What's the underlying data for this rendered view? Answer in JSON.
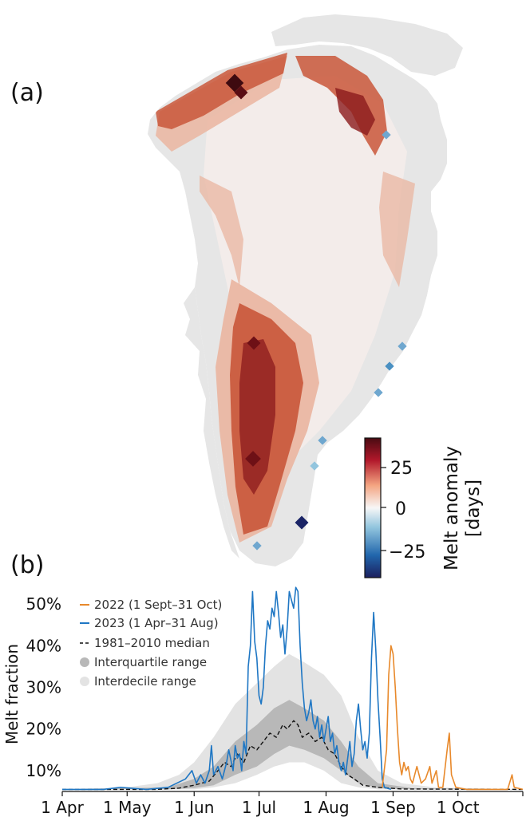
{
  "panel_a": {
    "label": "(a)",
    "colorbar": {
      "title_line1": "Melt anomaly",
      "title_line2": "[days]",
      "ticks": [
        "25",
        "0",
        "−25"
      ],
      "tick_values": [
        25,
        0,
        -25
      ],
      "range": [
        -40,
        40
      ],
      "colors": [
        "#1b1f5e",
        "#2166ac",
        "#92c5de",
        "#f7f7f7",
        "#f4a582",
        "#b2182b",
        "#4a0b12"
      ]
    },
    "map_colors": {
      "land": "#e6e6e6",
      "near_zero": "#f3ecea",
      "light_positive": "#eab5a0",
      "positive": "#c9573a",
      "strong_positive": "#8b1a1c",
      "extreme_positive": "#3e0a10",
      "negative": "#6fa7cf",
      "strong_negative": "#1b2466"
    }
  },
  "panel_b": {
    "label": "(b)"
  },
  "chart_data": {
    "type": "line",
    "title": "",
    "xlabel": "",
    "ylabel": "Melt fraction",
    "xlim": [
      "2023-04-01",
      "2023-10-31"
    ],
    "ylim": [
      0.05,
      0.55
    ],
    "x_tick_labels": [
      "1 Apr",
      "1 May",
      "1 Jun",
      "1 Jul",
      "1 Aug",
      "1 Sep",
      "1 Oct"
    ],
    "x_tick_dates": [
      "2023-04-01",
      "2023-05-01",
      "2023-06-01",
      "2023-07-01",
      "2023-08-01",
      "2023-09-01",
      "2023-10-01"
    ],
    "y_tick_labels": [
      "10%",
      "20%",
      "30%",
      "40%",
      "50%"
    ],
    "y_tick_values": [
      0.1,
      0.2,
      0.3,
      0.4,
      0.5
    ],
    "legend_position": "top-left",
    "series": [
      {
        "name": "2022 (1 Sept–31 Oct)",
        "color": "#e8892b",
        "style": "solid",
        "points": [
          [
            "2023-08-27",
            0.06
          ],
          [
            "2023-08-29",
            0.15
          ],
          [
            "2023-08-30",
            0.33
          ],
          [
            "2023-08-31",
            0.4
          ],
          [
            "2023-09-01",
            0.38
          ],
          [
            "2023-09-02",
            0.3
          ],
          [
            "2023-09-03",
            0.2
          ],
          [
            "2023-09-04",
            0.12
          ],
          [
            "2023-09-05",
            0.09
          ],
          [
            "2023-09-06",
            0.12
          ],
          [
            "2023-09-07",
            0.1
          ],
          [
            "2023-09-08",
            0.11
          ],
          [
            "2023-09-09",
            0.08
          ],
          [
            "2023-09-10",
            0.07
          ],
          [
            "2023-09-12",
            0.11
          ],
          [
            "2023-09-13",
            0.09
          ],
          [
            "2023-09-14",
            0.07
          ],
          [
            "2023-09-16",
            0.08
          ],
          [
            "2023-09-18",
            0.11
          ],
          [
            "2023-09-19",
            0.07
          ],
          [
            "2023-09-21",
            0.1
          ],
          [
            "2023-09-22",
            0.06
          ],
          [
            "2023-09-24",
            0.06
          ],
          [
            "2023-09-26",
            0.15
          ],
          [
            "2023-09-27",
            0.19
          ],
          [
            "2023-09-28",
            0.09
          ],
          [
            "2023-09-30",
            0.06
          ],
          [
            "2023-10-05",
            0.055
          ],
          [
            "2023-10-15",
            0.055
          ],
          [
            "2023-10-24",
            0.055
          ],
          [
            "2023-10-26",
            0.09
          ],
          [
            "2023-10-27",
            0.06
          ],
          [
            "2023-10-31",
            0.055
          ]
        ]
      },
      {
        "name": "2023 (1 Apr–31 Aug)",
        "color": "#1f77c4",
        "style": "solid",
        "points": [
          [
            "2023-04-01",
            0.055
          ],
          [
            "2023-04-20",
            0.055
          ],
          [
            "2023-04-28",
            0.06
          ],
          [
            "2023-05-10",
            0.055
          ],
          [
            "2023-05-20",
            0.06
          ],
          [
            "2023-05-28",
            0.08
          ],
          [
            "2023-05-31",
            0.1
          ],
          [
            "2023-06-02",
            0.07
          ],
          [
            "2023-06-04",
            0.09
          ],
          [
            "2023-06-06",
            0.07
          ],
          [
            "2023-06-08",
            0.1
          ],
          [
            "2023-06-09",
            0.16
          ],
          [
            "2023-06-10",
            0.09
          ],
          [
            "2023-06-12",
            0.11
          ],
          [
            "2023-06-14",
            0.08
          ],
          [
            "2023-06-16",
            0.12
          ],
          [
            "2023-06-17",
            0.15
          ],
          [
            "2023-06-19",
            0.1
          ],
          [
            "2023-06-20",
            0.16
          ],
          [
            "2023-06-21",
            0.13
          ],
          [
            "2023-06-22",
            0.14
          ],
          [
            "2023-06-23",
            0.1
          ],
          [
            "2023-06-24",
            0.17
          ],
          [
            "2023-06-25",
            0.14
          ],
          [
            "2023-06-26",
            0.35
          ],
          [
            "2023-06-27",
            0.4
          ],
          [
            "2023-06-28",
            0.53
          ],
          [
            "2023-06-29",
            0.41
          ],
          [
            "2023-06-30",
            0.37
          ],
          [
            "2023-07-01",
            0.28
          ],
          [
            "2023-07-02",
            0.26
          ],
          [
            "2023-07-03",
            0.3
          ],
          [
            "2023-07-04",
            0.4
          ],
          [
            "2023-07-05",
            0.46
          ],
          [
            "2023-07-06",
            0.44
          ],
          [
            "2023-07-07",
            0.49
          ],
          [
            "2023-07-08",
            0.47
          ],
          [
            "2023-07-09",
            0.53
          ],
          [
            "2023-07-10",
            0.48
          ],
          [
            "2023-07-11",
            0.42
          ],
          [
            "2023-07-12",
            0.45
          ],
          [
            "2023-07-13",
            0.38
          ],
          [
            "2023-07-14",
            0.44
          ],
          [
            "2023-07-15",
            0.53
          ],
          [
            "2023-07-16",
            0.51
          ],
          [
            "2023-07-17",
            0.49
          ],
          [
            "2023-07-18",
            0.54
          ],
          [
            "2023-07-19",
            0.53
          ],
          [
            "2023-07-20",
            0.4
          ],
          [
            "2023-07-21",
            0.31
          ],
          [
            "2023-07-22",
            0.25
          ],
          [
            "2023-07-23",
            0.22
          ],
          [
            "2023-07-24",
            0.24
          ],
          [
            "2023-07-25",
            0.27
          ],
          [
            "2023-07-26",
            0.22
          ],
          [
            "2023-07-27",
            0.2
          ],
          [
            "2023-07-28",
            0.23
          ],
          [
            "2023-07-29",
            0.18
          ],
          [
            "2023-07-30",
            0.21
          ],
          [
            "2023-07-31",
            0.17
          ],
          [
            "2023-08-01",
            0.2
          ],
          [
            "2023-08-02",
            0.23
          ],
          [
            "2023-08-03",
            0.17
          ],
          [
            "2023-08-04",
            0.19
          ],
          [
            "2023-08-05",
            0.14
          ],
          [
            "2023-08-06",
            0.16
          ],
          [
            "2023-08-07",
            0.12
          ],
          [
            "2023-08-08",
            0.1
          ],
          [
            "2023-08-09",
            0.12
          ],
          [
            "2023-08-10",
            0.09
          ],
          [
            "2023-08-11",
            0.13
          ],
          [
            "2023-08-12",
            0.17
          ],
          [
            "2023-08-13",
            0.11
          ],
          [
            "2023-08-14",
            0.14
          ],
          [
            "2023-08-15",
            0.22
          ],
          [
            "2023-08-16",
            0.26
          ],
          [
            "2023-08-17",
            0.2
          ],
          [
            "2023-08-18",
            0.15
          ],
          [
            "2023-08-19",
            0.17
          ],
          [
            "2023-08-20",
            0.13
          ],
          [
            "2023-08-21",
            0.19
          ],
          [
            "2023-08-22",
            0.37
          ],
          [
            "2023-08-23",
            0.48
          ],
          [
            "2023-08-24",
            0.39
          ],
          [
            "2023-08-25",
            0.27
          ],
          [
            "2023-08-26",
            0.18
          ],
          [
            "2023-08-27",
            0.08
          ],
          [
            "2023-08-28",
            0.06
          ],
          [
            "2023-08-31",
            0.055
          ]
        ]
      },
      {
        "name": "1981–2010 median",
        "color": "#111111",
        "style": "dashed",
        "points": [
          [
            "2023-04-01",
            0.055
          ],
          [
            "2023-05-15",
            0.055
          ],
          [
            "2023-05-25",
            0.058
          ],
          [
            "2023-06-01",
            0.065
          ],
          [
            "2023-06-08",
            0.075
          ],
          [
            "2023-06-12",
            0.1
          ],
          [
            "2023-06-15",
            0.12
          ],
          [
            "2023-06-18",
            0.11
          ],
          [
            "2023-06-21",
            0.14
          ],
          [
            "2023-06-24",
            0.12
          ],
          [
            "2023-06-27",
            0.16
          ],
          [
            "2023-06-30",
            0.15
          ],
          [
            "2023-07-03",
            0.17
          ],
          [
            "2023-07-06",
            0.19
          ],
          [
            "2023-07-09",
            0.18
          ],
          [
            "2023-07-12",
            0.21
          ],
          [
            "2023-07-14",
            0.2
          ],
          [
            "2023-07-17",
            0.22
          ],
          [
            "2023-07-19",
            0.21
          ],
          [
            "2023-07-21",
            0.18
          ],
          [
            "2023-07-24",
            0.19
          ],
          [
            "2023-07-27",
            0.17
          ],
          [
            "2023-07-30",
            0.18
          ],
          [
            "2023-08-02",
            0.15
          ],
          [
            "2023-08-05",
            0.14
          ],
          [
            "2023-08-08",
            0.11
          ],
          [
            "2023-08-11",
            0.09
          ],
          [
            "2023-08-14",
            0.08
          ],
          [
            "2023-08-18",
            0.065
          ],
          [
            "2023-08-25",
            0.06
          ],
          [
            "2023-09-05",
            0.056
          ],
          [
            "2023-10-31",
            0.055
          ]
        ]
      }
    ],
    "bands": [
      {
        "name": "Interdecile range",
        "color": "#e3e3e3",
        "points": [
          [
            "2023-04-01",
            0.055,
            0.055
          ],
          [
            "2023-05-01",
            0.055,
            0.06
          ],
          [
            "2023-05-15",
            0.055,
            0.07
          ],
          [
            "2023-05-25",
            0.055,
            0.09
          ],
          [
            "2023-06-01",
            0.055,
            0.12
          ],
          [
            "2023-06-10",
            0.06,
            0.18
          ],
          [
            "2023-06-20",
            0.07,
            0.26
          ],
          [
            "2023-06-30",
            0.09,
            0.31
          ],
          [
            "2023-07-08",
            0.11,
            0.35
          ],
          [
            "2023-07-15",
            0.12,
            0.38
          ],
          [
            "2023-07-22",
            0.12,
            0.36
          ],
          [
            "2023-07-31",
            0.1,
            0.33
          ],
          [
            "2023-08-08",
            0.07,
            0.28
          ],
          [
            "2023-08-16",
            0.06,
            0.18
          ],
          [
            "2023-08-25",
            0.055,
            0.1
          ],
          [
            "2023-09-05",
            0.055,
            0.07
          ],
          [
            "2023-09-20",
            0.055,
            0.06
          ],
          [
            "2023-10-31",
            0.055,
            0.055
          ]
        ]
      },
      {
        "name": "Interquartile range",
        "color": "#b8b8b8",
        "points": [
          [
            "2023-04-01",
            0.055,
            0.055
          ],
          [
            "2023-05-20",
            0.055,
            0.06
          ],
          [
            "2023-06-01",
            0.058,
            0.08
          ],
          [
            "2023-06-10",
            0.065,
            0.11
          ],
          [
            "2023-06-20",
            0.09,
            0.17
          ],
          [
            "2023-06-30",
            0.11,
            0.21
          ],
          [
            "2023-07-08",
            0.14,
            0.25
          ],
          [
            "2023-07-15",
            0.16,
            0.27
          ],
          [
            "2023-07-22",
            0.15,
            0.25
          ],
          [
            "2023-07-31",
            0.13,
            0.22
          ],
          [
            "2023-08-08",
            0.1,
            0.17
          ],
          [
            "2023-08-16",
            0.07,
            0.11
          ],
          [
            "2023-08-25",
            0.058,
            0.07
          ],
          [
            "2023-09-10",
            0.055,
            0.058
          ],
          [
            "2023-10-31",
            0.055,
            0.055
          ]
        ]
      }
    ]
  }
}
